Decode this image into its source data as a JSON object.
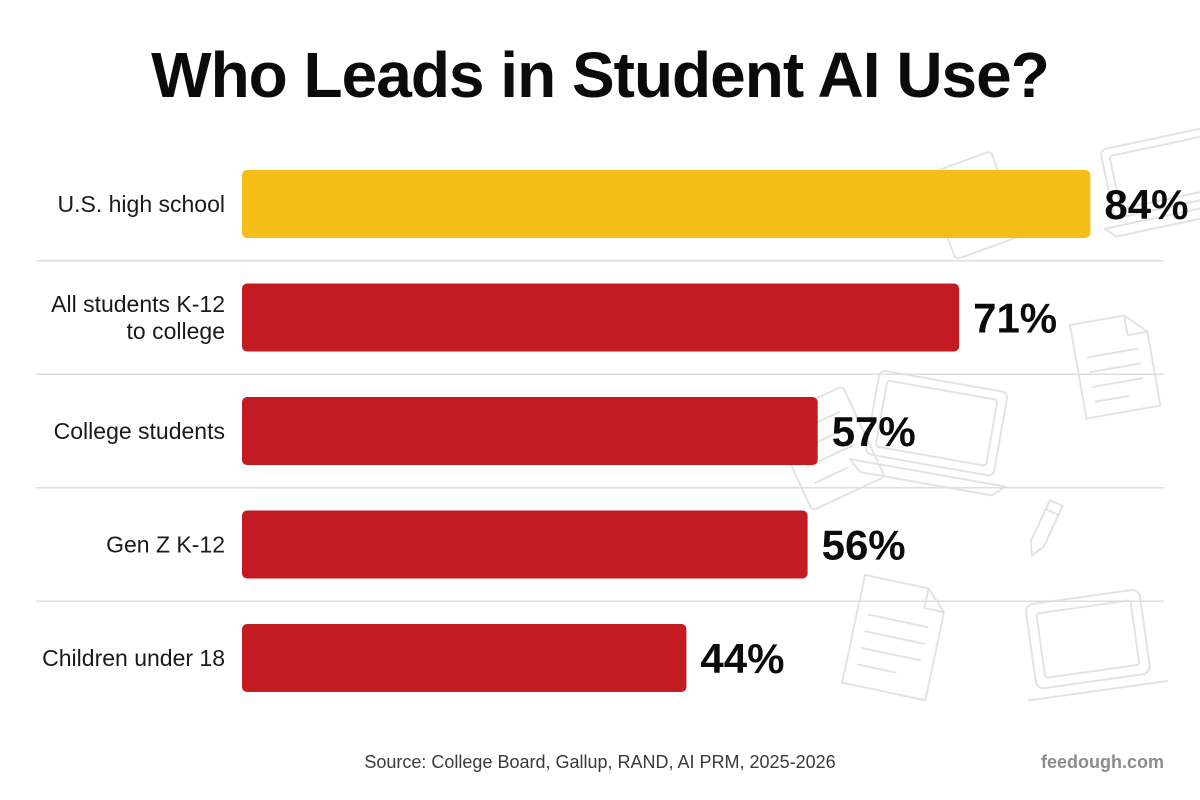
{
  "title": "Who Leads in Student AI Use?",
  "source": "Source: College Board, Gallup, RAND, AI PRM, 2025-2026",
  "brand": "feedough.com",
  "colors": {
    "highlight": "#F5BD18",
    "bar": "#C21B21",
    "divider": "#dedede",
    "doodle": "#e3e3e3"
  },
  "chart_data": {
    "type": "bar",
    "orientation": "horizontal",
    "categories": [
      [
        "U.S. high school"
      ],
      [
        "All students K-12",
        "to college"
      ],
      [
        "College students"
      ],
      [
        "Gen Z K-12"
      ],
      [
        "Children under 18"
      ]
    ],
    "values": [
      84,
      71,
      57,
      56,
      44
    ],
    "value_labels": [
      "84%",
      "71%",
      "57%",
      "56%",
      "44%"
    ],
    "highlight_index": 0,
    "xlim": [
      0,
      100
    ],
    "grid": false
  }
}
